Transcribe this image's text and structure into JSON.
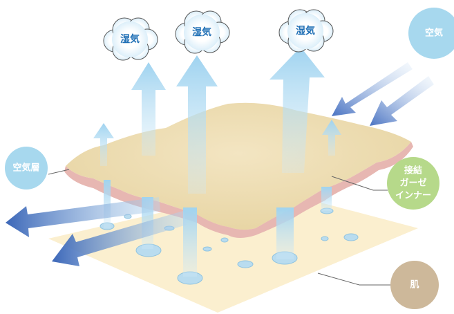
{
  "clouds": [
    {
      "label": "湿気"
    },
    {
      "label": "湿気"
    },
    {
      "label": "湿気"
    }
  ],
  "labels": {
    "air": "空気",
    "air_layer": "空気層",
    "gauze": [
      "接結",
      "ガーゼ",
      "インナー"
    ],
    "skin": "肌"
  }
}
